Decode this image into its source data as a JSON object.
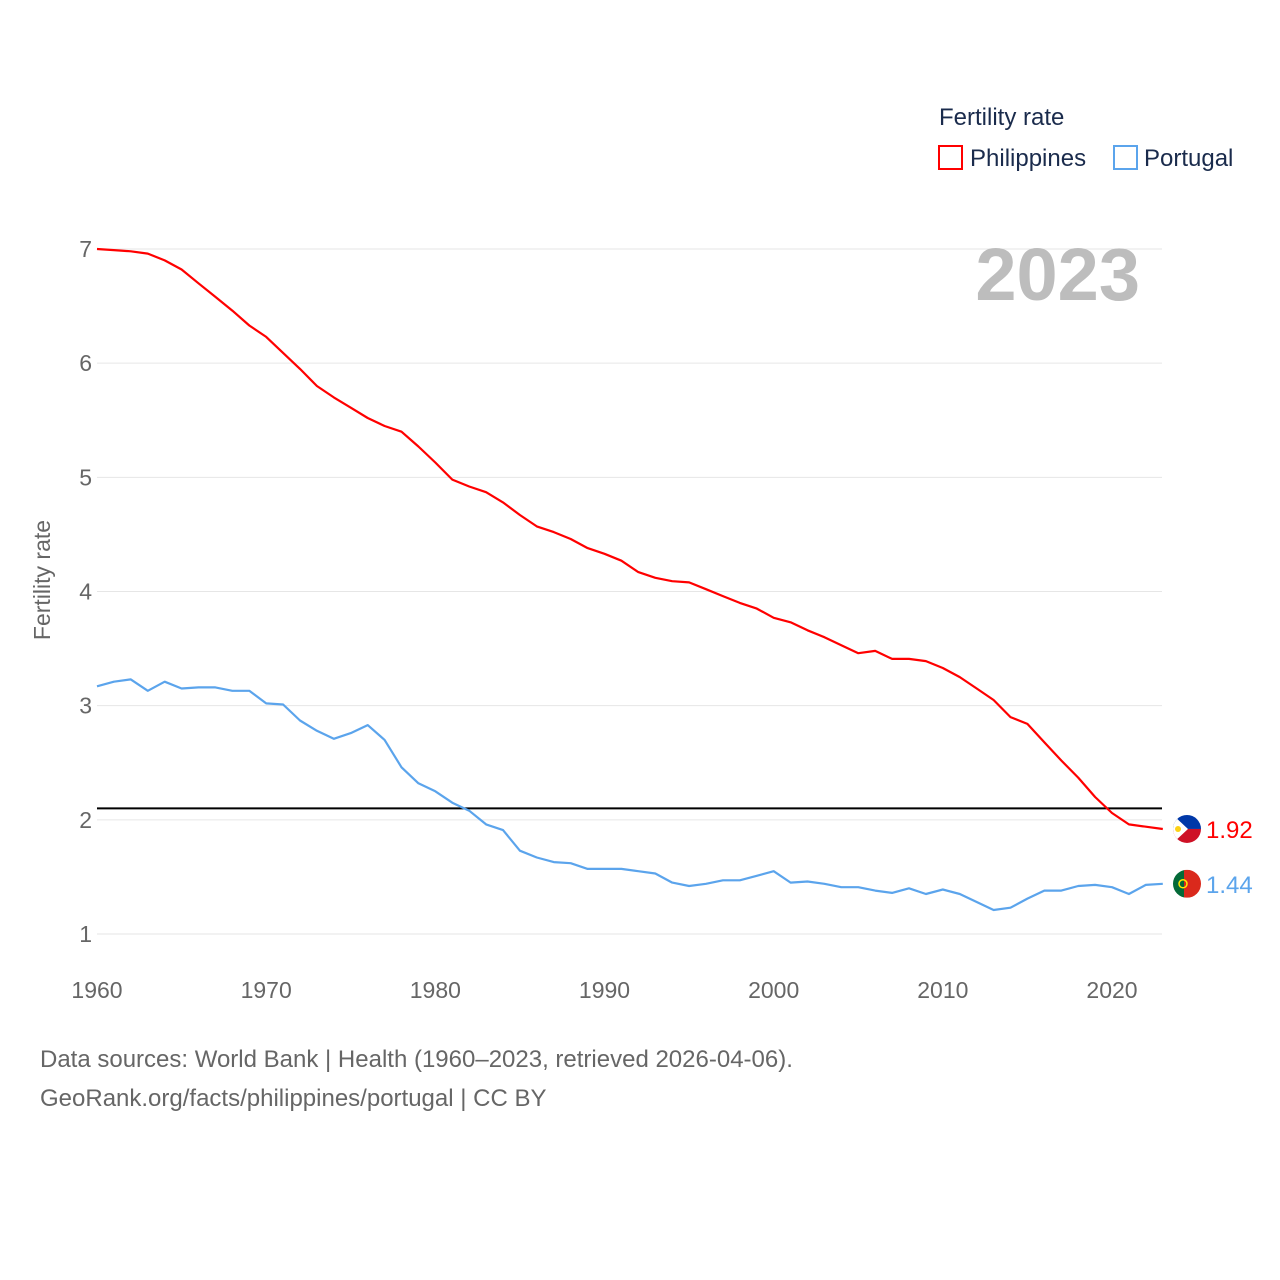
{
  "chart_data": {
    "type": "line",
    "title_year": "2023",
    "legend_title": "Fertility rate",
    "legend_position": "top-right",
    "ylabel": "Fertility rate",
    "xlabel": "",
    "xlim": [
      1960,
      2023
    ],
    "ylim": [
      0.8,
      7.1
    ],
    "x_ticks": [
      1960,
      1970,
      1980,
      1990,
      2000,
      2010,
      2020
    ],
    "y_ticks": [
      1,
      2,
      3,
      4,
      5,
      6,
      7
    ],
    "grid": true,
    "reference_line": 2.1,
    "x": [
      1960,
      1961,
      1962,
      1963,
      1964,
      1965,
      1966,
      1967,
      1968,
      1969,
      1970,
      1971,
      1972,
      1973,
      1974,
      1975,
      1976,
      1977,
      1978,
      1979,
      1980,
      1981,
      1982,
      1983,
      1984,
      1985,
      1986,
      1987,
      1988,
      1989,
      1990,
      1991,
      1992,
      1993,
      1994,
      1995,
      1996,
      1997,
      1998,
      1999,
      2000,
      2001,
      2002,
      2003,
      2004,
      2005,
      2006,
      2007,
      2008,
      2009,
      2010,
      2011,
      2012,
      2013,
      2014,
      2015,
      2016,
      2017,
      2018,
      2019,
      2020,
      2021,
      2022,
      2023
    ],
    "series": [
      {
        "name": "Philippines",
        "color": "#ff0000",
        "end_label": "1.92",
        "values": [
          7.0,
          6.99,
          6.98,
          6.96,
          6.9,
          6.82,
          6.7,
          6.58,
          6.46,
          6.33,
          6.23,
          6.09,
          5.95,
          5.8,
          5.7,
          5.61,
          5.52,
          5.45,
          5.4,
          5.27,
          5.13,
          4.98,
          4.92,
          4.87,
          4.78,
          4.67,
          4.57,
          4.52,
          4.46,
          4.38,
          4.33,
          4.27,
          4.17,
          4.12,
          4.09,
          4.08,
          4.02,
          3.96,
          3.9,
          3.85,
          3.77,
          3.73,
          3.66,
          3.6,
          3.53,
          3.46,
          3.48,
          3.41,
          3.41,
          3.39,
          3.33,
          3.25,
          3.15,
          3.05,
          2.9,
          2.84,
          2.68,
          2.52,
          2.37,
          2.2,
          2.06,
          1.96,
          1.94,
          1.92
        ]
      },
      {
        "name": "Portugal",
        "color": "#5ba4ec",
        "end_label": "1.44",
        "values": [
          3.17,
          3.21,
          3.23,
          3.13,
          3.21,
          3.15,
          3.16,
          3.16,
          3.13,
          3.13,
          3.02,
          3.01,
          2.87,
          2.78,
          2.71,
          2.76,
          2.83,
          2.7,
          2.46,
          2.32,
          2.25,
          2.15,
          2.08,
          1.96,
          1.91,
          1.73,
          1.67,
          1.63,
          1.62,
          1.57,
          1.57,
          1.57,
          1.55,
          1.53,
          1.45,
          1.42,
          1.44,
          1.47,
          1.47,
          1.51,
          1.55,
          1.45,
          1.46,
          1.44,
          1.41,
          1.41,
          1.38,
          1.36,
          1.4,
          1.35,
          1.39,
          1.35,
          1.28,
          1.21,
          1.23,
          1.31,
          1.38,
          1.38,
          1.42,
          1.43,
          1.41,
          1.35,
          1.43,
          1.44
        ]
      }
    ]
  },
  "footer": {
    "line1": "Data sources: World Bank | Health (1960–2023, retrieved 2026-04-06).",
    "line2": "GeoRank.org/facts/philippines/portugal | CC BY"
  }
}
